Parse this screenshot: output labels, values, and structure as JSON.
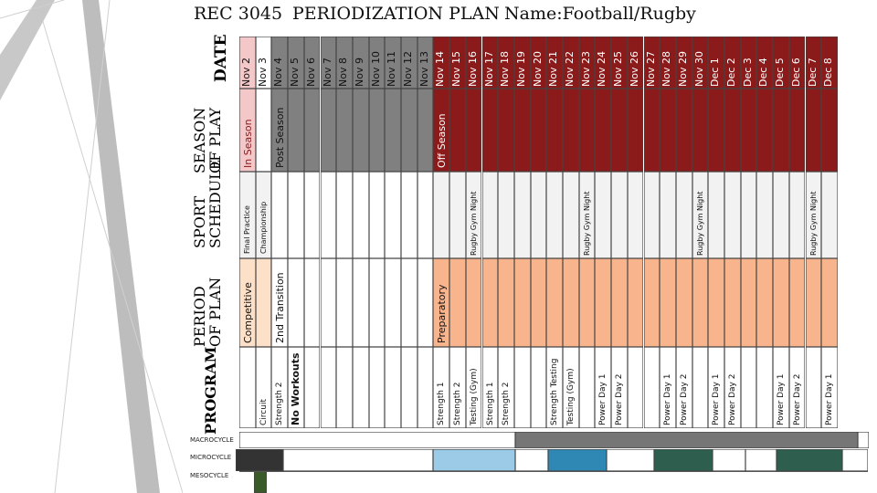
{
  "header": {
    "code": "REC 3045",
    "title": "PERIODIZATION PLAN",
    "name": "Name:Football/Rugby"
  },
  "row_labels": {
    "date": "DATE",
    "season": "SEASON OF PLAY",
    "sport_schedule": "SPORT SCHEDULE",
    "period": "PERIOD OF PLAN",
    "program": "PROGRAM",
    "macrocycle": "MACROCYCLE",
    "microcycle": "MICROCYCLE",
    "mesocycle": "MESOCYCLE"
  },
  "dates": [
    "Nov 2",
    "Nov 3",
    "Nov 4",
    "Nov 5",
    "Nov 6",
    "Nov 7",
    "Nov 8",
    "Nov 9",
    "Nov 10",
    "Nov 11",
    "Nov 12",
    "Nov 13",
    "Nov 14",
    "Nov 15",
    "Nov 16",
    "Nov 17",
    "Nov 18",
    "Nov 19",
    "Nov 20",
    "Nov 21",
    "Nov 22",
    "Nov 23",
    "Nov 24",
    "Nov 25",
    "Nov 26",
    "Nov 27",
    "Nov 28",
    "Nov 29",
    "Nov 30",
    "Dec 1",
    "Dec 2",
    "Dec 3",
    "Dec 4",
    "Dec 5",
    "Dec 6",
    "Dec 7",
    "Dec 8"
  ],
  "season": {
    "in_season": "In Season",
    "post_season": "Post Season",
    "off_season": "Off Season"
  },
  "sport_schedule": {
    "final_practice": "Final Practice",
    "championship": "Championship",
    "rugby_gym_night": "Rugby Gym Night"
  },
  "period": {
    "competitive": "Competitive",
    "transition": "2nd Transition",
    "preparatory": "Preparatory"
  },
  "program": {
    "circuit": "Circuit",
    "strength_2": "Strength 2",
    "no_workouts": "No Workouts",
    "strength_1": "Strength 1",
    "testing_gym": "Testing (Gym)",
    "strength_testing": "Strength Testing",
    "power_day_1": "Power Day 1",
    "power_day_2": "Power Day 2"
  },
  "colors": {
    "in_season": "#f4c7c9",
    "post_season": "#808080",
    "off_season": "#8b1a1a",
    "competitive": "#fde0c8",
    "preparatory": "#f8b48c",
    "micro_dark": "#333333",
    "micro_light_blue": "#9ccbe8",
    "micro_blue": "#2f87b3",
    "micro_green": "#2e5e4e",
    "meso_green": "#3a5a2a",
    "macro_fill": "#767676"
  }
}
